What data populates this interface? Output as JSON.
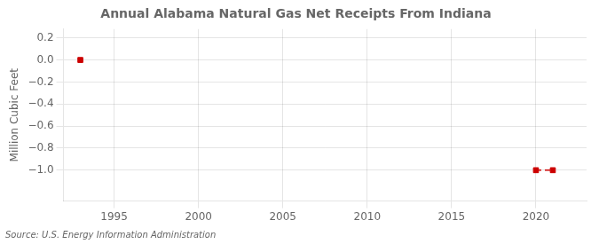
{
  "chart_data": {
    "type": "scatter",
    "title": "Annual Alabama Natural Gas Net Receipts From Indiana",
    "ylabel": "Million Cubic Feet",
    "annotation": "Source: U.S. Energy Information Administration",
    "x": [
      1993,
      2020,
      2021
    ],
    "series": [
      {
        "type": "scatter",
        "color": "#cc0000",
        "marker": "square",
        "values": [
          0.0,
          -1.0,
          -1.0
        ]
      },
      {
        "type": "line",
        "color": "#cc0000",
        "line_style": "dashed",
        "values": [
          null,
          -1.0,
          -1.0
        ]
      }
    ],
    "xlim": [
      1992,
      2023
    ],
    "ylim": [
      -1.28,
      0.28
    ],
    "xticks": [
      1995,
      2000,
      2005,
      2010,
      2015,
      2020
    ],
    "yticks": [
      0.2,
      {
        "value": 0.0,
        "label": "0.0"
      },
      {
        "value": -0.2,
        "label": "−0.2"
      },
      {
        "value": -0.4,
        "label": "−0.4"
      },
      {
        "value": -0.6,
        "label": "−0.6"
      },
      {
        "value": -0.8,
        "label": "−0.8"
      },
      {
        "value": -1.0,
        "label": "−1.0"
      }
    ],
    "grid": true
  }
}
